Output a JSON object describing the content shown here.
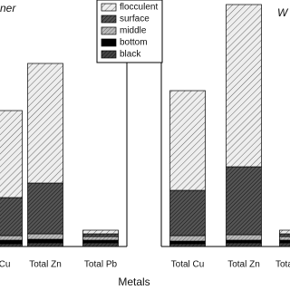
{
  "chart_data": [
    {
      "type": "bar",
      "stacked": true,
      "title": "ner",
      "x_label": "Metals",
      "categories": [
        "Cu",
        "Total Zn",
        "Total Pb"
      ],
      "ylim": [
        0,
        270
      ],
      "series": [
        {
          "name": "black",
          "color": "#444444",
          "values": [
            3,
            4,
            4
          ]
        },
        {
          "name": "bottom",
          "color": "#000000",
          "values": [
            4,
            4,
            3
          ]
        },
        {
          "name": "middle",
          "color": "#bbbbbb",
          "values": [
            5,
            6,
            4
          ]
        },
        {
          "name": "surface",
          "color": "#555555",
          "values": [
            42,
            56,
            3
          ]
        },
        {
          "name": "flocculent",
          "color": "#eeeeee",
          "values": [
            96,
            132,
            4
          ]
        }
      ]
    },
    {
      "type": "bar",
      "stacked": true,
      "title": "W",
      "categories": [
        "Total Cu",
        "Total Zn",
        "Total"
      ],
      "ylim": [
        0,
        270
      ],
      "series": [
        {
          "name": "black",
          "color": "#444444",
          "values": [
            3,
            4,
            4
          ]
        },
        {
          "name": "bottom",
          "color": "#000000",
          "values": [
            3,
            3,
            3
          ]
        },
        {
          "name": "middle",
          "color": "#bbbbbb",
          "values": [
            6,
            6,
            4
          ]
        },
        {
          "name": "surface",
          "color": "#555555",
          "values": [
            50,
            75,
            3
          ]
        },
        {
          "name": "flocculent",
          "color": "#eeeeee",
          "values": [
            110,
            179,
            4
          ]
        }
      ]
    }
  ]
}
